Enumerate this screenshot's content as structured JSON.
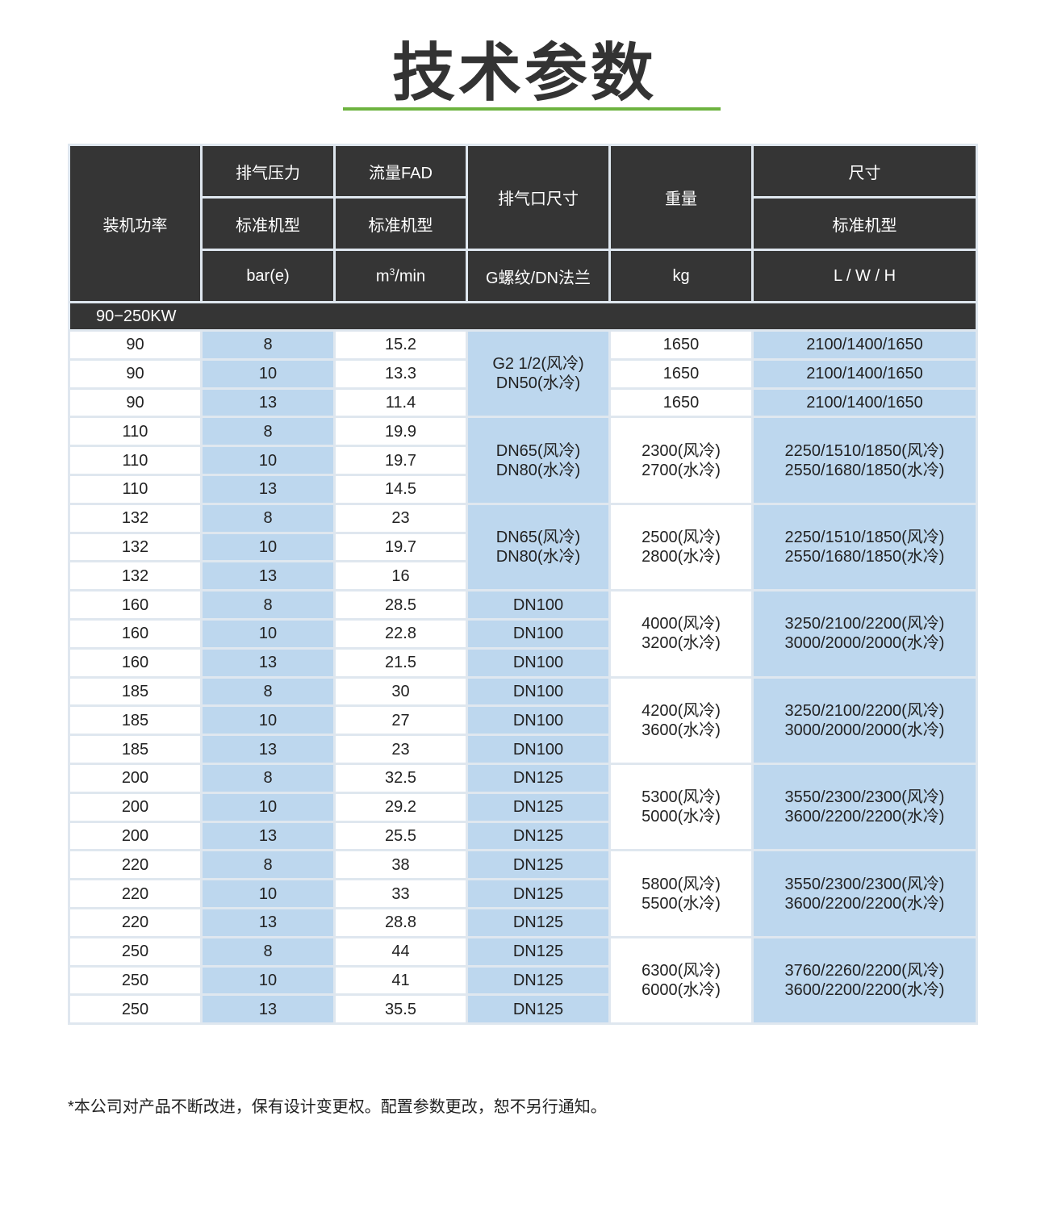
{
  "title": "技术参数",
  "accent_color": "#6db33f",
  "header": {
    "power": "装机功率",
    "pressure": "排气压力",
    "pressure_sub": "标准机型",
    "pressure_unit": "bar(e)",
    "flow": "流量FAD",
    "flow_sub": "标准机型",
    "flow_unit_base": "m",
    "flow_unit_sup": "3",
    "flow_unit_rest": "/min",
    "port": "排气口尺寸",
    "port_unit": "G螺纹/DN法兰",
    "weight": "重量",
    "weight_unit": "kg",
    "size": "尺寸",
    "size_sub": "标准机型",
    "size_unit": "L / W / H"
  },
  "section": "90−250KW",
  "groups": [
    {
      "power": "90",
      "rows": [
        [
          "8",
          "15.2"
        ],
        [
          "10",
          "13.3"
        ],
        [
          "13",
          "11.4"
        ]
      ],
      "port": [
        "G2 1/2(风冷)\nDN50(水冷)"
      ],
      "weight": [
        "1650",
        "1650",
        "1650"
      ],
      "size": [
        "2100/1400/1650",
        "2100/1400/1650",
        "2100/1400/1650"
      ]
    },
    {
      "power": "110",
      "rows": [
        [
          "8",
          "19.9"
        ],
        [
          "10",
          "19.7"
        ],
        [
          "13",
          "14.5"
        ]
      ],
      "port": [
        "DN65(风冷)\nDN80(水冷)"
      ],
      "weight": [
        "2300(风冷)\n2700(水冷)"
      ],
      "size": [
        "2250/1510/1850(风冷)\n2550/1680/1850(水冷)"
      ]
    },
    {
      "power": "132",
      "rows": [
        [
          "8",
          "23"
        ],
        [
          "10",
          "19.7"
        ],
        [
          "13",
          "16"
        ]
      ],
      "port": [
        "DN65(风冷)\nDN80(水冷)"
      ],
      "weight": [
        "2500(风冷)\n2800(水冷)"
      ],
      "size": [
        "2250/1510/1850(风冷)\n2550/1680/1850(水冷)"
      ]
    },
    {
      "power": "160",
      "rows": [
        [
          "8",
          "28.5"
        ],
        [
          "10",
          "22.8"
        ],
        [
          "13",
          "21.5"
        ]
      ],
      "port": [
        "DN100",
        "DN100",
        "DN100"
      ],
      "weight": [
        "4000(风冷)\n3200(水冷)"
      ],
      "size": [
        "3250/2100/2200(风冷)\n3000/2000/2000(水冷)"
      ]
    },
    {
      "power": "185",
      "rows": [
        [
          "8",
          "30"
        ],
        [
          "10",
          "27"
        ],
        [
          "13",
          "23"
        ]
      ],
      "port": [
        "DN100",
        "DN100",
        "DN100"
      ],
      "weight": [
        "4200(风冷)\n3600(水冷)"
      ],
      "size": [
        "3250/2100/2200(风冷)\n3000/2000/2000(水冷)"
      ]
    },
    {
      "power": "200",
      "rows": [
        [
          "8",
          "32.5"
        ],
        [
          "10",
          "29.2"
        ],
        [
          "13",
          "25.5"
        ]
      ],
      "port": [
        "DN125",
        "DN125",
        "DN125"
      ],
      "weight": [
        "5300(风冷)\n5000(水冷)"
      ],
      "size": [
        "3550/2300/2300(风冷)\n3600/2200/2200(水冷)"
      ]
    },
    {
      "power": "220",
      "rows": [
        [
          "8",
          "38"
        ],
        [
          "10",
          "33"
        ],
        [
          "13",
          "28.8"
        ]
      ],
      "port": [
        "DN125",
        "DN125",
        "DN125"
      ],
      "weight": [
        "5800(风冷)\n5500(水冷)"
      ],
      "size": [
        "3550/2300/2300(风冷)\n3600/2200/2200(水冷)"
      ]
    },
    {
      "power": "250",
      "rows": [
        [
          "8",
          "44"
        ],
        [
          "10",
          "41"
        ],
        [
          "13",
          "35.5"
        ]
      ],
      "port": [
        "DN125",
        "DN125",
        "DN125"
      ],
      "weight": [
        "6300(风冷)\n6000(水冷)"
      ],
      "size": [
        "3760/2260/2200(风冷)\n3600/2200/2200(水冷)"
      ]
    }
  ],
  "note": "*本公司对产品不断改进，保有设计变更权。配置参数更改，恕不另行通知。"
}
